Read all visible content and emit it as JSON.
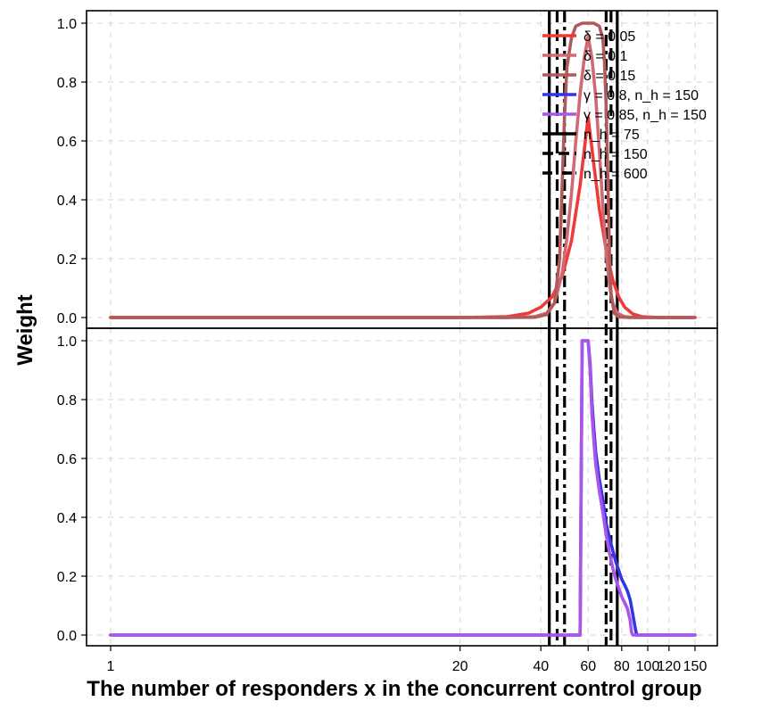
{
  "chart_data": {
    "type": "line",
    "ylabel": "Weight",
    "xlabel": "The number of responders x in the concurrent control group",
    "x_axis": {
      "scale": "log",
      "range": [
        1,
        150
      ],
      "ticks": [
        1,
        20,
        40,
        60,
        80,
        100,
        120,
        150
      ]
    },
    "grid": true,
    "legend_position": "top-right of upper panel",
    "legend": [
      {
        "label": "δ = 0.05",
        "color": "#f03a3a",
        "style": "solid"
      },
      {
        "label": "δ = 0.1",
        "color": "#d06a72",
        "style": "solid"
      },
      {
        "label": "δ = 0.15",
        "color": "#b05a5a",
        "style": "solid"
      },
      {
        "label": "γ = 0.8, n_h = 150",
        "color": "#3535e8",
        "style": "solid"
      },
      {
        "label": "γ = 0.85, n_h = 150",
        "color": "#a855e8",
        "style": "solid"
      },
      {
        "label": "n_h = 75",
        "color": "#000000",
        "style": "solid"
      },
      {
        "label": "n_h = 150",
        "color": "#000000",
        "style": "dashed"
      },
      {
        "label": "n_h = 600",
        "color": "#000000",
        "style": "dotdash"
      }
    ],
    "vertical_lines": [
      {
        "x": 43,
        "style": "solid",
        "group": "n_h = 75"
      },
      {
        "x": 77,
        "style": "solid",
        "group": "n_h = 75"
      },
      {
        "x": 46,
        "style": "dashed",
        "group": "n_h = 150"
      },
      {
        "x": 73,
        "style": "dashed",
        "group": "n_h = 150"
      },
      {
        "x": 49,
        "style": "dotdash",
        "group": "n_h = 600"
      },
      {
        "x": 70,
        "style": "dotdash",
        "group": "n_h = 600"
      }
    ],
    "panels": [
      {
        "name": "upper",
        "yticks": [
          "0.0",
          "0.2",
          "0.4",
          "0.6",
          "0.8",
          "1.0"
        ],
        "ylim": [
          0,
          1
        ],
        "series": [
          {
            "name": "δ = 0.05",
            "color": "#f03a3a",
            "points": [
              [
                1,
                0
              ],
              [
                20,
                0
              ],
              [
                30,
                0.003
              ],
              [
                36,
                0.015
              ],
              [
                40,
                0.035
              ],
              [
                44,
                0.07
              ],
              [
                48,
                0.14
              ],
              [
                52,
                0.26
              ],
              [
                56,
                0.45
              ],
              [
                60,
                0.68
              ],
              [
                63,
                0.52
              ],
              [
                66,
                0.37
              ],
              [
                70,
                0.23
              ],
              [
                74,
                0.13
              ],
              [
                78,
                0.07
              ],
              [
                82,
                0.035
              ],
              [
                88,
                0.012
              ],
              [
                95,
                0.003
              ],
              [
                110,
                0
              ],
              [
                150,
                0
              ]
            ]
          },
          {
            "name": "δ = 0.1",
            "color": "#d06a72",
            "points": [
              [
                1,
                0
              ],
              [
                30,
                0
              ],
              [
                38,
                0.003
              ],
              [
                42,
                0.015
              ],
              [
                45,
                0.05
              ],
              [
                48,
                0.15
              ],
              [
                50,
                0.27
              ],
              [
                52,
                0.42
              ],
              [
                54,
                0.6
              ],
              [
                56,
                0.76
              ],
              [
                58,
                0.88
              ],
              [
                60,
                0.955
              ],
              [
                62,
                0.88
              ],
              [
                64,
                0.75
              ],
              [
                66,
                0.57
              ],
              [
                68,
                0.38
              ],
              [
                70,
                0.22
              ],
              [
                72,
                0.11
              ],
              [
                74,
                0.05
              ],
              [
                77,
                0.015
              ],
              [
                82,
                0.003
              ],
              [
                90,
                0
              ],
              [
                150,
                0
              ]
            ]
          },
          {
            "name": "δ = 0.15",
            "color": "#b05a5a",
            "points": [
              [
                1,
                0
              ],
              [
                30,
                0
              ],
              [
                38,
                0.001
              ],
              [
                42,
                0.01
              ],
              [
                45,
                0.05
              ],
              [
                47,
                0.2
              ],
              [
                48,
                0.45
              ],
              [
                49,
                0.68
              ],
              [
                50,
                0.85
              ],
              [
                52,
                0.95
              ],
              [
                54,
                0.99
              ],
              [
                57,
                1.0
              ],
              [
                63,
                1.0
              ],
              [
                66,
                0.99
              ],
              [
                68,
                0.95
              ],
              [
                69,
                0.87
              ],
              [
                70,
                0.72
              ],
              [
                71,
                0.48
              ],
              [
                72,
                0.22
              ],
              [
                73,
                0.08
              ],
              [
                75,
                0.015
              ],
              [
                78,
                0.002
              ],
              [
                85,
                0
              ],
              [
                150,
                0
              ]
            ]
          }
        ]
      },
      {
        "name": "lower",
        "yticks": [
          "0.0",
          "0.2",
          "0.4",
          "0.6",
          "0.8",
          "1.0"
        ],
        "ylim": [
          0,
          1
        ],
        "series": [
          {
            "name": "γ = 0.8, n_h = 150",
            "color": "#3535e8",
            "points": [
              [
                1,
                0
              ],
              [
                55,
                0
              ],
              [
                56,
                0
              ],
              [
                57,
                1.0
              ],
              [
                60,
                1.0
              ],
              [
                61,
                0.92
              ],
              [
                62,
                0.79
              ],
              [
                63,
                0.7
              ],
              [
                64,
                0.62
              ],
              [
                66,
                0.53
              ],
              [
                68,
                0.46
              ],
              [
                70,
                0.38
              ],
              [
                72,
                0.33
              ],
              [
                74,
                0.29
              ],
              [
                76,
                0.25
              ],
              [
                78,
                0.22
              ],
              [
                80,
                0.19
              ],
              [
                82,
                0.17
              ],
              [
                84,
                0.15
              ],
              [
                86,
                0.12
              ],
              [
                88,
                0.07
              ],
              [
                90,
                0.02
              ],
              [
                91,
                0
              ],
              [
                150,
                0
              ]
            ]
          },
          {
            "name": "γ = 0.85, n_h = 150",
            "color": "#a855e8",
            "points": [
              [
                1,
                0
              ],
              [
                55,
                0
              ],
              [
                56,
                0
              ],
              [
                57,
                1.0
              ],
              [
                60,
                1.0
              ],
              [
                61,
                0.9
              ],
              [
                62,
                0.75
              ],
              [
                63,
                0.66
              ],
              [
                64,
                0.58
              ],
              [
                66,
                0.49
              ],
              [
                68,
                0.42
              ],
              [
                70,
                0.34
              ],
              [
                72,
                0.28
              ],
              [
                74,
                0.23
              ],
              [
                76,
                0.19
              ],
              [
                78,
                0.16
              ],
              [
                80,
                0.13
              ],
              [
                82,
                0.11
              ],
              [
                84,
                0.09
              ],
              [
                86,
                0.05
              ],
              [
                87,
                0.01
              ],
              [
                88,
                0
              ],
              [
                150,
                0
              ]
            ]
          }
        ]
      }
    ]
  }
}
